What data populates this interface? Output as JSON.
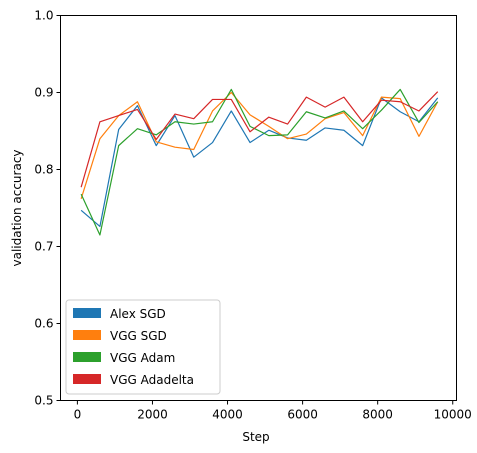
{
  "chart_data": {
    "type": "line",
    "title": "",
    "xlabel": "Step",
    "ylabel": "validation accuracy",
    "xlim": [
      -450,
      10100
    ],
    "ylim": [
      0.5,
      1.0
    ],
    "xticks": [
      0,
      2000,
      4000,
      6000,
      8000,
      10000
    ],
    "xtick_labels": [
      "0",
      "2000",
      "4000",
      "6000",
      "8000",
      "10000"
    ],
    "yticks": [
      0.5,
      0.6,
      0.7,
      0.8,
      0.9,
      1.0
    ],
    "ytick_labels": [
      "0.5",
      "0.6",
      "0.7",
      "0.8",
      "0.9",
      "1.0"
    ],
    "grid": false,
    "legend_position": "lower-left",
    "x": [
      100,
      600,
      1100,
      1600,
      2100,
      2600,
      3100,
      3600,
      4100,
      4600,
      5100,
      5600,
      6100,
      6600,
      7100,
      7600,
      8100,
      8600,
      9100,
      9600
    ],
    "series": [
      {
        "name": "Alex SGD",
        "color": "#1f77b4",
        "values": [
          0.747,
          0.726,
          0.852,
          0.883,
          0.831,
          0.87,
          0.816,
          0.835,
          0.876,
          0.835,
          0.851,
          0.841,
          0.838,
          0.854,
          0.851,
          0.831,
          0.893,
          0.875,
          0.862,
          0.893
        ]
      },
      {
        "name": "VGG SGD",
        "color": "#ff7f0e",
        "values": [
          0.762,
          0.84,
          0.87,
          0.888,
          0.836,
          0.829,
          0.826,
          0.876,
          0.9,
          0.871,
          0.856,
          0.84,
          0.846,
          0.866,
          0.874,
          0.844,
          0.894,
          0.892,
          0.843,
          0.888
        ]
      },
      {
        "name": "VGG Adam",
        "color": "#2ca02c",
        "values": [
          0.768,
          0.715,
          0.831,
          0.853,
          0.845,
          0.862,
          0.859,
          0.862,
          0.904,
          0.856,
          0.844,
          0.845,
          0.875,
          0.867,
          0.876,
          0.853,
          0.877,
          0.904,
          0.861,
          0.888
        ]
      },
      {
        "name": "VGG Adadelta",
        "color": "#d62728",
        "values": [
          0.777,
          0.862,
          0.87,
          0.878,
          0.839,
          0.872,
          0.866,
          0.891,
          0.891,
          0.849,
          0.868,
          0.859,
          0.894,
          0.881,
          0.894,
          0.862,
          0.89,
          0.888,
          0.876,
          0.901
        ]
      }
    ]
  }
}
